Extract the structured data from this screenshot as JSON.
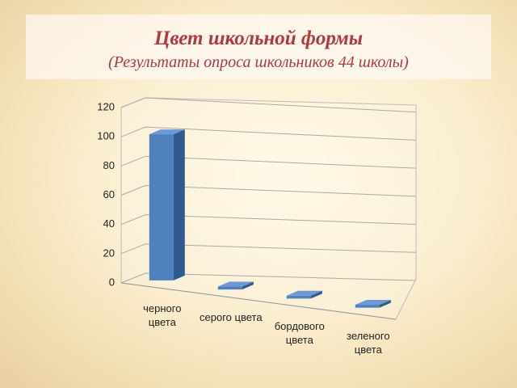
{
  "chart_data": {
    "type": "bar",
    "title": "Цвет школьной формы",
    "subtitle": "(Результаты опроса школьников 44 школы)",
    "categories": [
      "черного цвета",
      "серого цвета",
      "бордового цвета",
      "зеленого цвета"
    ],
    "values": [
      100,
      2,
      2,
      2
    ],
    "color": "#4f81bd",
    "ylim": [
      0,
      120
    ],
    "yticks": [
      0,
      20,
      40,
      60,
      80,
      100,
      120
    ],
    "grid": true
  }
}
